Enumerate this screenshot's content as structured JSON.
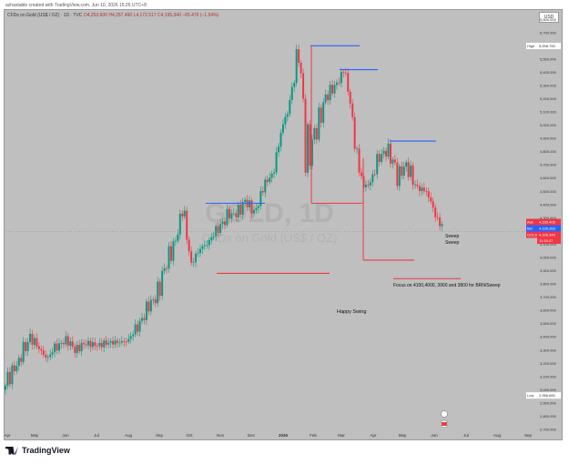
{
  "header": {
    "left": "azhastable created with TradingView.com, Jun 10, 2026 15:26 UTC+8"
  },
  "symbol": {
    "title": "CFDs on Gold (US$ / OZ) · 1D · TVC",
    "ohlc": "O4,253.600 H4,257.490 L4,172.517 C4,195.340 −65.470 (−1.54%)"
  },
  "currency": "USD",
  "watermark": {
    "big": "GOLD, 1D",
    "small": "CFDs on Gold (US$ / OZ)"
  },
  "price_labels": {
    "high_tag": "High",
    "high_value": "5,598.750",
    "low_tag": "Low",
    "low_value": "2,956.660",
    "ask_tag": "Ask",
    "ask_value": "4,195.405",
    "bid_tag": "Bid",
    "bid_value": "4,195.353",
    "gold_tag": "GOLD",
    "gold_value": "4,195.340",
    "countdown": "11:33:27"
  },
  "annotations": {
    "sweep1": "Sweep",
    "sweep2": "Sweep",
    "focus": "Focus on 4100,4000, 3900 and 3800 for BRN/Sweep",
    "swing": "Happy Swing"
  },
  "footer": {
    "brand": "TradingView"
  },
  "colors": {
    "up": "#089981",
    "down": "#f23645",
    "blue_line": "#2962ff",
    "red_line": "#f23645",
    "bg": "#bfbfbf"
  },
  "chart_data": {
    "type": "candlestick",
    "x_ticks": [
      "Apr",
      "May",
      "Jun",
      "Jul",
      "Aug",
      "Sep",
      "Oct",
      "Nov",
      "Dec",
      "2026",
      "Feb",
      "Mar",
      "Apr",
      "May",
      "Jun",
      "Jul",
      "Aug",
      "Sep"
    ],
    "y_ticks": [
      "5,800.000",
      "5,700.000",
      "5,600.000",
      "5,500.000",
      "5,400.000",
      "5,300.000",
      "5,200.000",
      "5,100.000",
      "5,000.000",
      "4,900.000",
      "4,800.000",
      "4,700.000",
      "4,600.000",
      "4,500.000",
      "4,400.000",
      "4,300.000",
      "4,200.000",
      "4,100.000",
      "4,000.000",
      "3,900.000",
      "3,800.000",
      "3,700.000",
      "3,600.000",
      "3,500.000",
      "3,400.000",
      "3,300.000",
      "3,200.000",
      "3,100.000",
      "3,000.000",
      "2,900.000",
      "2,800.000",
      "2,700.000"
    ],
    "ylim": [
      2700,
      5850
    ],
    "close_series": [
      [
        "Apr",
        3000
      ],
      [
        "Apr",
        3150
      ],
      [
        "Apr",
        3230
      ],
      [
        "Apr",
        3420
      ],
      [
        "May",
        3300
      ],
      [
        "May",
        3240
      ],
      [
        "May",
        3340
      ],
      [
        "Jun",
        3370
      ],
      [
        "Jun",
        3310
      ],
      [
        "Jun",
        3340
      ],
      [
        "Jul",
        3350
      ],
      [
        "Jul",
        3330
      ],
      [
        "Aug",
        3370
      ],
      [
        "Aug",
        3350
      ],
      [
        "Aug",
        3380
      ],
      [
        "Sep",
        3480
      ],
      [
        "Sep",
        3600
      ],
      [
        "Sep",
        3700
      ],
      [
        "Oct",
        3900
      ],
      [
        "Oct",
        4100
      ],
      [
        "Oct",
        4330
      ],
      [
        "Nov",
        3980
      ],
      [
        "Nov",
        4050
      ],
      [
        "Nov",
        4130
      ],
      [
        "Dec",
        4220
      ],
      [
        "Dec",
        4310
      ],
      [
        "Dec",
        4330
      ],
      [
        "Dec",
        4420
      ],
      [
        "2026",
        4350
      ],
      [
        "2026",
        4500
      ],
      [
        "2026",
        4650
      ],
      [
        "2026",
        4900
      ],
      [
        "Feb",
        5200
      ],
      [
        "Feb",
        5550
      ],
      [
        "Feb",
        4700
      ],
      [
        "Feb",
        5000
      ],
      [
        "Mar",
        5200
      ],
      [
        "Mar",
        5300
      ],
      [
        "Mar",
        5400
      ],
      [
        "Mar",
        5100
      ],
      [
        "Apr",
        4500
      ],
      [
        "Apr",
        4580
      ],
      [
        "Apr",
        4760
      ],
      [
        "May",
        4820
      ],
      [
        "May",
        4620
      ],
      [
        "May",
        4700
      ],
      [
        "May",
        4550
      ],
      [
        "Jun",
        4500
      ],
      [
        "Jun",
        4400
      ],
      [
        "Jun",
        4195
      ]
    ],
    "levels": [
      {
        "price": 4410,
        "color": "blue",
        "from": "Oct",
        "to": "Nov"
      },
      {
        "price": 3880,
        "color": "red",
        "from": "Oct",
        "to": "Dec"
      },
      {
        "price": 5600,
        "color": "blue",
        "from": "Feb",
        "to": "Mar"
      },
      {
        "price": 5420,
        "color": "blue",
        "from": "Mar",
        "to": "Apr"
      },
      {
        "price": 4410,
        "color": "red",
        "from": "Feb",
        "to": "Mar"
      },
      {
        "price": 4880,
        "color": "blue",
        "from": "Apr",
        "to": "Jun"
      },
      {
        "price": 3980,
        "color": "red",
        "from": "Apr",
        "to": "May"
      },
      {
        "price": 3840,
        "color": "red",
        "from": "May",
        "to": "Jun"
      }
    ]
  }
}
